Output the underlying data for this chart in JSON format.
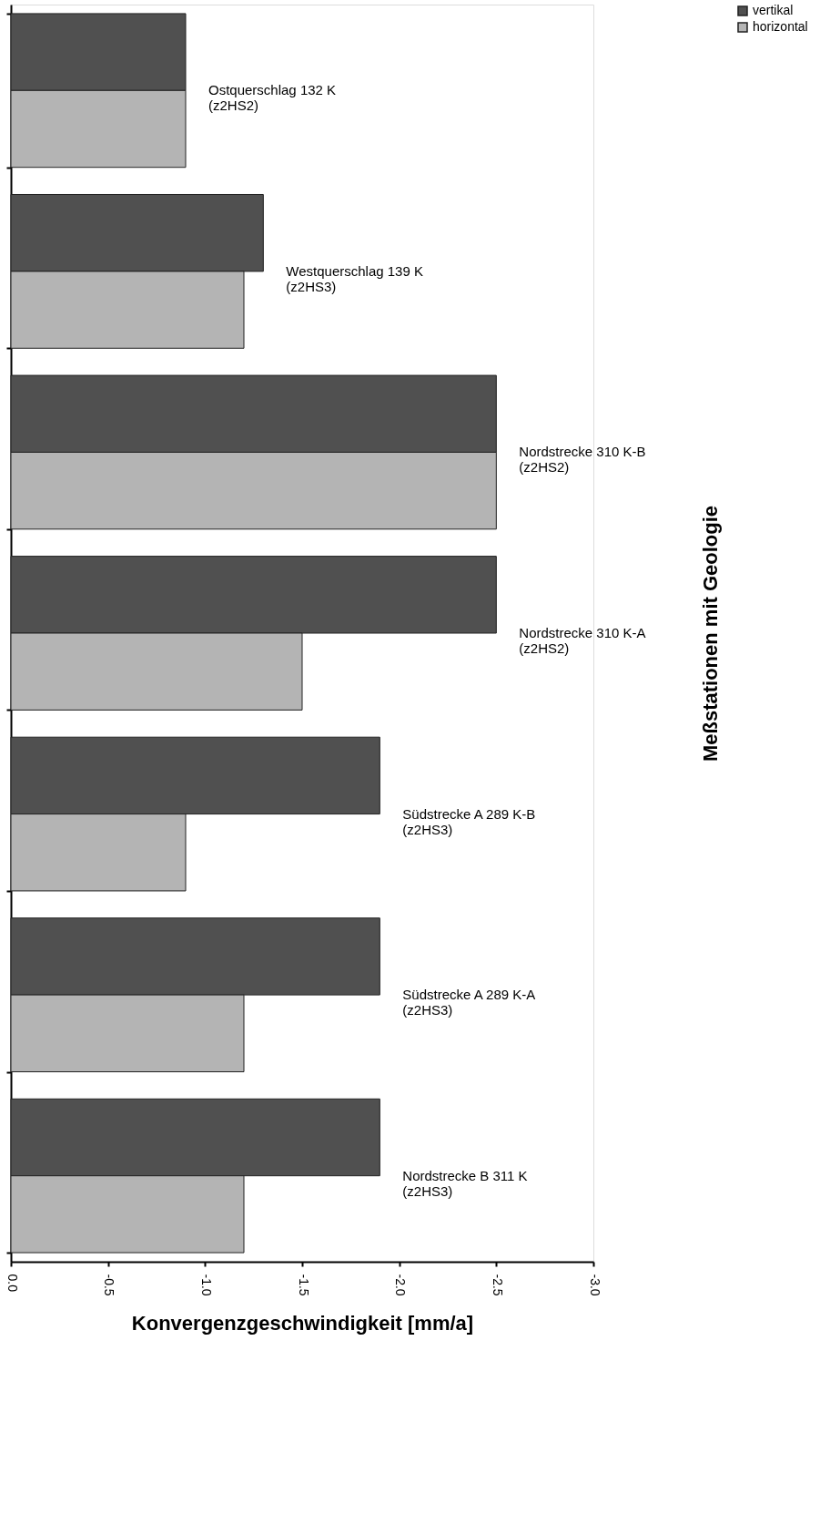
{
  "chart_data": {
    "type": "bar",
    "orientation": "horizontal",
    "xlabel": "Konvergenzgeschwindigkeit [mm/a]",
    "ylabel": "Meßstationen mit Geologie",
    "categories": [
      "Ostquerschlag 132 K\n(z2HS2)",
      "Westquerschlag 139 K\n(z2HS3)",
      "Nordstrecke 310 K-B\n(z2HS2)",
      "Nordstrecke 310 K-A\n(z2HS2)",
      "Südstrecke A  289 K-B\n(z2HS3)",
      "Südstrecke A  289 K-A\n(z2HS3)",
      "Nordstrecke B 311 K\n(z2HS3)"
    ],
    "series": [
      {
        "name": "vertikal",
        "color": "#505050",
        "values": [
          -0.9,
          -1.3,
          -2.5,
          -2.5,
          -1.9,
          -1.9,
          -1.9
        ]
      },
      {
        "name": "horizontal",
        "color": "#b4b4b4",
        "values": [
          -0.9,
          -1.2,
          -2.5,
          -1.5,
          -0.9,
          -1.2,
          -1.2
        ]
      }
    ],
    "xlim": [
      0,
      -3.0
    ],
    "xticks": [
      {
        "value": 0,
        "label": "0.0"
      },
      {
        "value": -0.5,
        "label": "-0.5"
      },
      {
        "value": -1.0,
        "label": "-1.0"
      },
      {
        "value": -1.5,
        "label": "-1.5"
      },
      {
        "value": -2.0,
        "label": "-2.0"
      },
      {
        "value": -2.5,
        "label": "-2.5"
      },
      {
        "value": -3.0,
        "label": "-3.0"
      }
    ],
    "tick_labels": "x",
    "legend": "right",
    "grid": false
  }
}
